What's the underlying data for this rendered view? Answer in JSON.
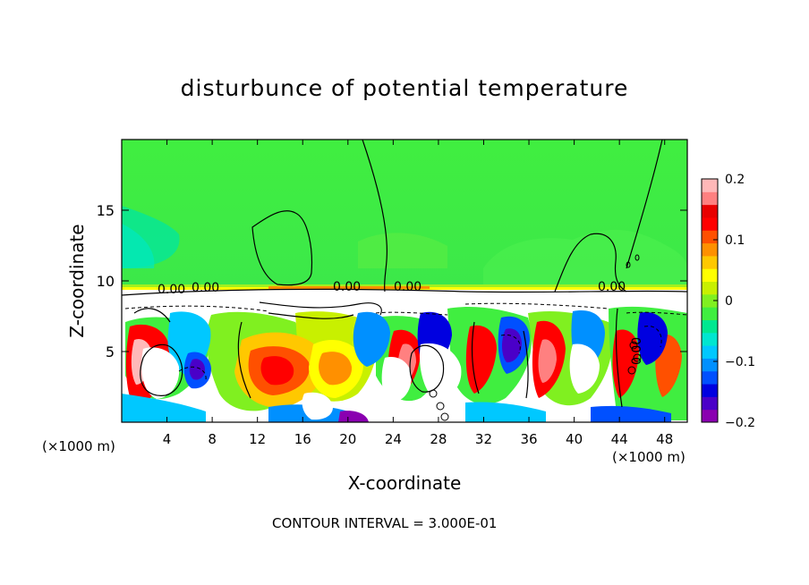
{
  "chart_data": {
    "type": "heatmap",
    "title": "disturbunce of potential temperature",
    "xlabel": "X-coordinate",
    "ylabel": "Z-coordinate",
    "x_unit_label": "(×1000 m)",
    "xlim": [
      0,
      50
    ],
    "ylim": [
      0,
      20
    ],
    "x_ticks": [
      "4",
      "8",
      "12",
      "16",
      "20",
      "24",
      "28",
      "32",
      "36",
      "40",
      "44",
      "48"
    ],
    "y_ticks": [
      "5",
      "10",
      "15"
    ],
    "colorbar": {
      "range": [
        -0.2,
        0.2
      ],
      "tick_labels": [
        "0.2",
        "0.1",
        "0",
        "−0.1",
        "−0.2"
      ],
      "colors": [
        "#8a00b0",
        "#4a00c8",
        "#0000e0",
        "#0050ff",
        "#0090ff",
        "#00c8ff",
        "#00e6d0",
        "#00e890",
        "#40ee40",
        "#80f020",
        "#c8f000",
        "#ffff00",
        "#ffc800",
        "#ff9000",
        "#ff5000",
        "#ff0000",
        "#e80000",
        "#ff8080",
        "#ffb8b8"
      ]
    },
    "contour_labels": [
      "0.00",
      "0.00",
      "0.00",
      "0.00",
      "0.00",
      "0.00"
    ],
    "contour_interval_text": "CONTOUR INTERVAL = 3.000E-01",
    "grid": false
  }
}
